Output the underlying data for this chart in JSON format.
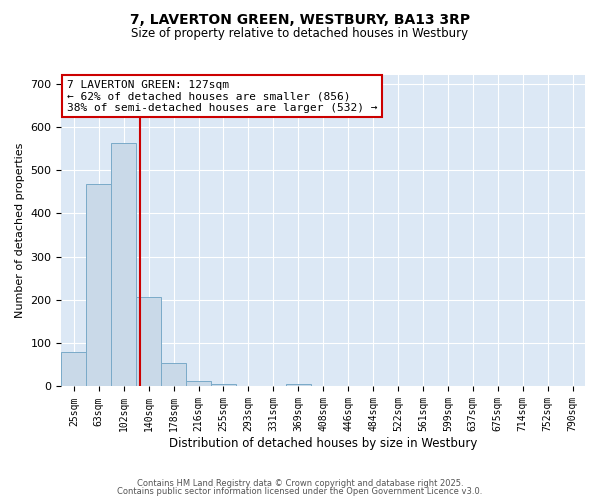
{
  "title_line1": "7, LAVERTON GREEN, WESTBURY, BA13 3RP",
  "title_line2": "Size of property relative to detached houses in Westbury",
  "xlabel": "Distribution of detached houses by size in Westbury",
  "ylabel": "Number of detached properties",
  "bin_labels": [
    "25sqm",
    "63sqm",
    "102sqm",
    "140sqm",
    "178sqm",
    "216sqm",
    "255sqm",
    "293sqm",
    "331sqm",
    "369sqm",
    "408sqm",
    "446sqm",
    "484sqm",
    "522sqm",
    "561sqm",
    "599sqm",
    "637sqm",
    "675sqm",
    "714sqm",
    "752sqm",
    "790sqm"
  ],
  "bar_values": [
    80,
    467,
    563,
    207,
    55,
    12,
    6,
    0,
    0,
    6,
    0,
    0,
    0,
    0,
    0,
    0,
    0,
    0,
    0,
    0,
    0
  ],
  "bar_color": "#c9d9e8",
  "bar_edge_color": "#7aaac8",
  "background_color": "#dce8f5",
  "grid_color": "#ffffff",
  "red_line_bin": 2.66,
  "annotation_text": "7 LAVERTON GREEN: 127sqm\n← 62% of detached houses are smaller (856)\n38% of semi-detached houses are larger (532) →",
  "ylim": [
    0,
    720
  ],
  "yticks": [
    0,
    100,
    200,
    300,
    400,
    500,
    600,
    700
  ],
  "fig_bg": "#ffffff",
  "footer_line1": "Contains HM Land Registry data © Crown copyright and database right 2025.",
  "footer_line2": "Contains public sector information licensed under the Open Government Licence v3.0."
}
